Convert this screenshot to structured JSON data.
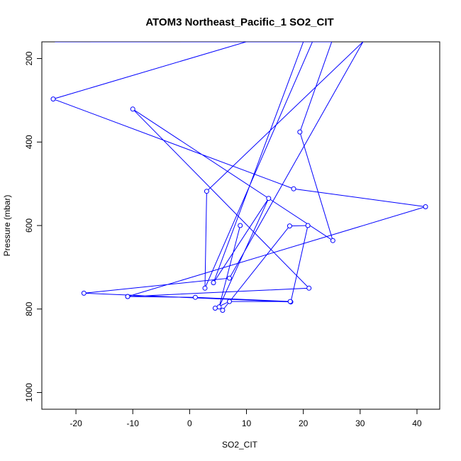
{
  "chart_data": {
    "type": "line",
    "title": "ATOM3 Northeast_Pacific_1 SO2_CIT",
    "xlabel": "SO2_CIT",
    "ylabel": "Pressure (mbar)",
    "xlim": [
      -26,
      44
    ],
    "ylim": [
      1040,
      160
    ],
    "y_reversed": true,
    "x_ticks": [
      -20,
      -10,
      0,
      10,
      20,
      30,
      40
    ],
    "y_ticks": [
      200,
      400,
      600,
      800,
      1000
    ],
    "grid": false,
    "legend": "none",
    "colors": {
      "series": "#0000ff",
      "axis": "#000000"
    },
    "series": [
      {
        "marker": "open-circle",
        "x": [
          5.8,
          17.6,
          20.8,
          17.8,
          -18.6,
          7.0,
          30.5,
          3.0,
          2.7,
          21.6,
          -23.7,
          10.2,
          -24.0,
          18.3,
          41.5,
          -10.9,
          21.0,
          -10.0,
          25.2,
          19.4,
          25.0,
          20.0,
          4.2,
          13.9,
          5.2,
          8.9
        ],
        "y": [
          803,
          601,
          600,
          783,
          762,
          726,
          160,
          518,
          750,
          160,
          160,
          159,
          297,
          512,
          555,
          770,
          750,
          321,
          636,
          376,
          160,
          160,
          737,
          535,
          795,
          600
        ]
      },
      {
        "marker": "open-circle",
        "x": [
          4.5,
          7.0,
          17.7,
          1.0,
          -10.9
        ],
        "y": [
          798,
          782,
          782,
          772,
          770
        ]
      }
    ]
  }
}
